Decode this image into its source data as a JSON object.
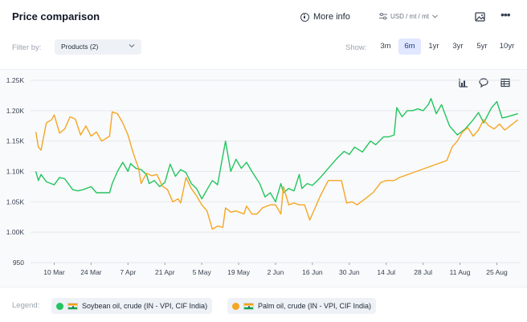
{
  "header": {
    "title": "Price comparison",
    "more_info_label": "More info",
    "units_label": "USD / mt / mt"
  },
  "filter": {
    "label": "Filter by:",
    "products_value": "Products (2)"
  },
  "range": {
    "label": "Show:",
    "options": [
      "3m",
      "6m",
      "1yr",
      "3yr",
      "5yr",
      "10yr"
    ],
    "active": "6m"
  },
  "legend": {
    "label": "Legend:",
    "items": [
      {
        "name": "Soybean oil, crude (IN - VPI, CIF India)",
        "color": "#22c55e"
      },
      {
        "name": "Palm oil, crude (IN - VPI, CIF India)",
        "color": "#f5a623"
      }
    ]
  },
  "colors": {
    "green": "#22c55e",
    "orange": "#f5a623",
    "grid": "#e5e7eb",
    "axis_text": "#374151"
  },
  "icons": [
    "info-icon",
    "units-icon",
    "chevron-down-icon",
    "image-export-icon",
    "more-icon",
    "bar-chart-icon",
    "comment-icon",
    "table-icon"
  ],
  "chart_data": {
    "type": "line",
    "x_ticks": [
      "10 Mar",
      "24 Mar",
      "7 Apr",
      "21 Apr",
      "5 May",
      "19 May",
      "2 Jun",
      "16 Jun",
      "30 Jun",
      "14 Jul",
      "28 Jul",
      "11 Aug",
      "25 Aug"
    ],
    "y_ticks": [
      "950",
      "1.00K",
      "1.05K",
      "1.10K",
      "1.15K",
      "1.20K",
      "1.25K"
    ],
    "ylim": [
      950,
      1250
    ],
    "xlim": [
      "2025-03-01",
      "2025-09-03"
    ],
    "grid": true,
    "series": [
      {
        "name": "Soybean oil, crude (IN - VPI, CIF India)",
        "color": "#22c55e",
        "points": [
          [
            "2025-03-03",
            1100
          ],
          [
            "2025-03-04",
            1085
          ],
          [
            "2025-03-05",
            1095
          ],
          [
            "2025-03-07",
            1083
          ],
          [
            "2025-03-10",
            1078
          ],
          [
            "2025-03-12",
            1090
          ],
          [
            "2025-03-14",
            1088
          ],
          [
            "2025-03-17",
            1070
          ],
          [
            "2025-03-19",
            1068
          ],
          [
            "2025-03-21",
            1070
          ],
          [
            "2025-03-24",
            1075
          ],
          [
            "2025-03-26",
            1065
          ],
          [
            "2025-03-28",
            1065
          ],
          [
            "2025-03-31",
            1065
          ],
          [
            "2025-04-01",
            1080
          ],
          [
            "2025-04-03",
            1100
          ],
          [
            "2025-04-05",
            1115
          ],
          [
            "2025-04-07",
            1100
          ],
          [
            "2025-04-08",
            1113
          ],
          [
            "2025-04-10",
            1105
          ],
          [
            "2025-04-12",
            1103
          ],
          [
            "2025-04-14",
            1095
          ],
          [
            "2025-04-15",
            1080
          ],
          [
            "2025-04-17",
            1085
          ],
          [
            "2025-04-19",
            1075
          ],
          [
            "2025-04-21",
            1082
          ],
          [
            "2025-04-23",
            1112
          ],
          [
            "2025-04-25",
            1092
          ],
          [
            "2025-04-27",
            1103
          ],
          [
            "2025-04-29",
            1098
          ],
          [
            "2025-05-01",
            1080
          ],
          [
            "2025-05-03",
            1072
          ],
          [
            "2025-05-05",
            1055
          ],
          [
            "2025-05-07",
            1070
          ],
          [
            "2025-05-09",
            1085
          ],
          [
            "2025-05-11",
            1078
          ],
          [
            "2025-05-14",
            1150
          ],
          [
            "2025-05-16",
            1100
          ],
          [
            "2025-05-18",
            1120
          ],
          [
            "2025-05-20",
            1105
          ],
          [
            "2025-05-22",
            1115
          ],
          [
            "2025-05-24",
            1100
          ],
          [
            "2025-05-27",
            1080
          ],
          [
            "2025-05-29",
            1058
          ],
          [
            "2025-05-31",
            1065
          ],
          [
            "2025-06-02",
            1050
          ],
          [
            "2025-06-04",
            1080
          ],
          [
            "2025-06-05",
            1065
          ],
          [
            "2025-06-07",
            1072
          ],
          [
            "2025-06-09",
            1068
          ],
          [
            "2025-06-11",
            1095
          ],
          [
            "2025-06-12",
            1072
          ],
          [
            "2025-06-14",
            1080
          ],
          [
            "2025-06-16",
            1077
          ],
          [
            "2025-06-19",
            1090
          ],
          [
            "2025-06-22",
            1105
          ],
          [
            "2025-06-25",
            1120
          ],
          [
            "2025-06-28",
            1133
          ],
          [
            "2025-06-30",
            1128
          ],
          [
            "2025-07-02",
            1140
          ],
          [
            "2025-07-05",
            1132
          ],
          [
            "2025-07-08",
            1150
          ],
          [
            "2025-07-10",
            1144
          ],
          [
            "2025-07-13",
            1157
          ],
          [
            "2025-07-15",
            1157
          ],
          [
            "2025-07-17",
            1160
          ],
          [
            "2025-07-18",
            1205
          ],
          [
            "2025-07-20",
            1190
          ],
          [
            "2025-07-22",
            1200
          ],
          [
            "2025-07-24",
            1200
          ],
          [
            "2025-07-26",
            1203
          ],
          [
            "2025-07-28",
            1200
          ],
          [
            "2025-07-30",
            1210
          ],
          [
            "2025-07-31",
            1220
          ],
          [
            "2025-08-02",
            1195
          ],
          [
            "2025-08-04",
            1210
          ],
          [
            "2025-08-07",
            1175
          ],
          [
            "2025-08-10",
            1160
          ],
          [
            "2025-08-13",
            1170
          ],
          [
            "2025-08-16",
            1185
          ],
          [
            "2025-08-18",
            1197
          ],
          [
            "2025-08-20",
            1180
          ],
          [
            "2025-08-23",
            1205
          ],
          [
            "2025-08-25",
            1215
          ],
          [
            "2025-08-27",
            1188
          ],
          [
            "2025-08-29",
            1190
          ],
          [
            "2025-09-02",
            1195
          ]
        ]
      },
      {
        "name": "Palm oil, crude (IN - VPI, CIF India)",
        "color": "#f5a623",
        "points": [
          [
            "2025-03-03",
            1165
          ],
          [
            "2025-03-04",
            1140
          ],
          [
            "2025-03-05",
            1135
          ],
          [
            "2025-03-07",
            1180
          ],
          [
            "2025-03-09",
            1185
          ],
          [
            "2025-03-10",
            1193
          ],
          [
            "2025-03-12",
            1163
          ],
          [
            "2025-03-14",
            1170
          ],
          [
            "2025-03-16",
            1190
          ],
          [
            "2025-03-18",
            1186
          ],
          [
            "2025-03-20",
            1160
          ],
          [
            "2025-03-22",
            1175
          ],
          [
            "2025-03-24",
            1158
          ],
          [
            "2025-03-26",
            1165
          ],
          [
            "2025-03-28",
            1150
          ],
          [
            "2025-03-31",
            1158
          ],
          [
            "2025-04-01",
            1198
          ],
          [
            "2025-04-03",
            1195
          ],
          [
            "2025-04-05",
            1180
          ],
          [
            "2025-04-07",
            1160
          ],
          [
            "2025-04-09",
            1130
          ],
          [
            "2025-04-11",
            1105
          ],
          [
            "2025-04-12",
            1080
          ],
          [
            "2025-04-14",
            1097
          ],
          [
            "2025-04-16",
            1093
          ],
          [
            "2025-04-18",
            1095
          ],
          [
            "2025-04-20",
            1076
          ],
          [
            "2025-04-22",
            1070
          ],
          [
            "2025-04-24",
            1050
          ],
          [
            "2025-04-26",
            1055
          ],
          [
            "2025-04-27",
            1048
          ],
          [
            "2025-04-29",
            1090
          ],
          [
            "2025-05-01",
            1072
          ],
          [
            "2025-05-03",
            1060
          ],
          [
            "2025-05-05",
            1045
          ],
          [
            "2025-05-07",
            1035
          ],
          [
            "2025-05-09",
            1005
          ],
          [
            "2025-05-11",
            1010
          ],
          [
            "2025-05-13",
            1008
          ],
          [
            "2025-05-14",
            1040
          ],
          [
            "2025-05-16",
            1033
          ],
          [
            "2025-05-18",
            1035
          ],
          [
            "2025-05-21",
            1030
          ],
          [
            "2025-05-22",
            1043
          ],
          [
            "2025-05-24",
            1030
          ],
          [
            "2025-05-26",
            1030
          ],
          [
            "2025-05-28",
            1040
          ],
          [
            "2025-05-31",
            1045
          ],
          [
            "2025-06-02",
            1045
          ],
          [
            "2025-06-04",
            1030
          ],
          [
            "2025-06-05",
            1075
          ],
          [
            "2025-06-07",
            1045
          ],
          [
            "2025-06-09",
            1048
          ],
          [
            "2025-06-11",
            1045
          ],
          [
            "2025-06-13",
            1045
          ],
          [
            "2025-06-15",
            1020
          ],
          [
            "2025-06-17",
            1040
          ],
          [
            "2025-06-19",
            1060
          ],
          [
            "2025-06-22",
            1085
          ],
          [
            "2025-06-25",
            1085
          ],
          [
            "2025-06-27",
            1085
          ],
          [
            "2025-06-29",
            1048
          ],
          [
            "2025-07-01",
            1050
          ],
          [
            "2025-07-03",
            1045
          ],
          [
            "2025-07-06",
            1055
          ],
          [
            "2025-07-09",
            1065
          ],
          [
            "2025-07-12",
            1082
          ],
          [
            "2025-07-14",
            1085
          ],
          [
            "2025-07-17",
            1085
          ],
          [
            "2025-07-19",
            1090
          ],
          [
            "2025-08-06",
            1118
          ],
          [
            "2025-08-08",
            1140
          ],
          [
            "2025-08-10",
            1150
          ],
          [
            "2025-08-12",
            1165
          ],
          [
            "2025-08-14",
            1172
          ],
          [
            "2025-08-16",
            1158
          ],
          [
            "2025-08-18",
            1168
          ],
          [
            "2025-08-20",
            1185
          ],
          [
            "2025-08-22",
            1175
          ],
          [
            "2025-08-24",
            1170
          ],
          [
            "2025-08-26",
            1178
          ],
          [
            "2025-08-28",
            1168
          ],
          [
            "2025-08-30",
            1175
          ],
          [
            "2025-09-02",
            1185
          ]
        ]
      }
    ]
  }
}
